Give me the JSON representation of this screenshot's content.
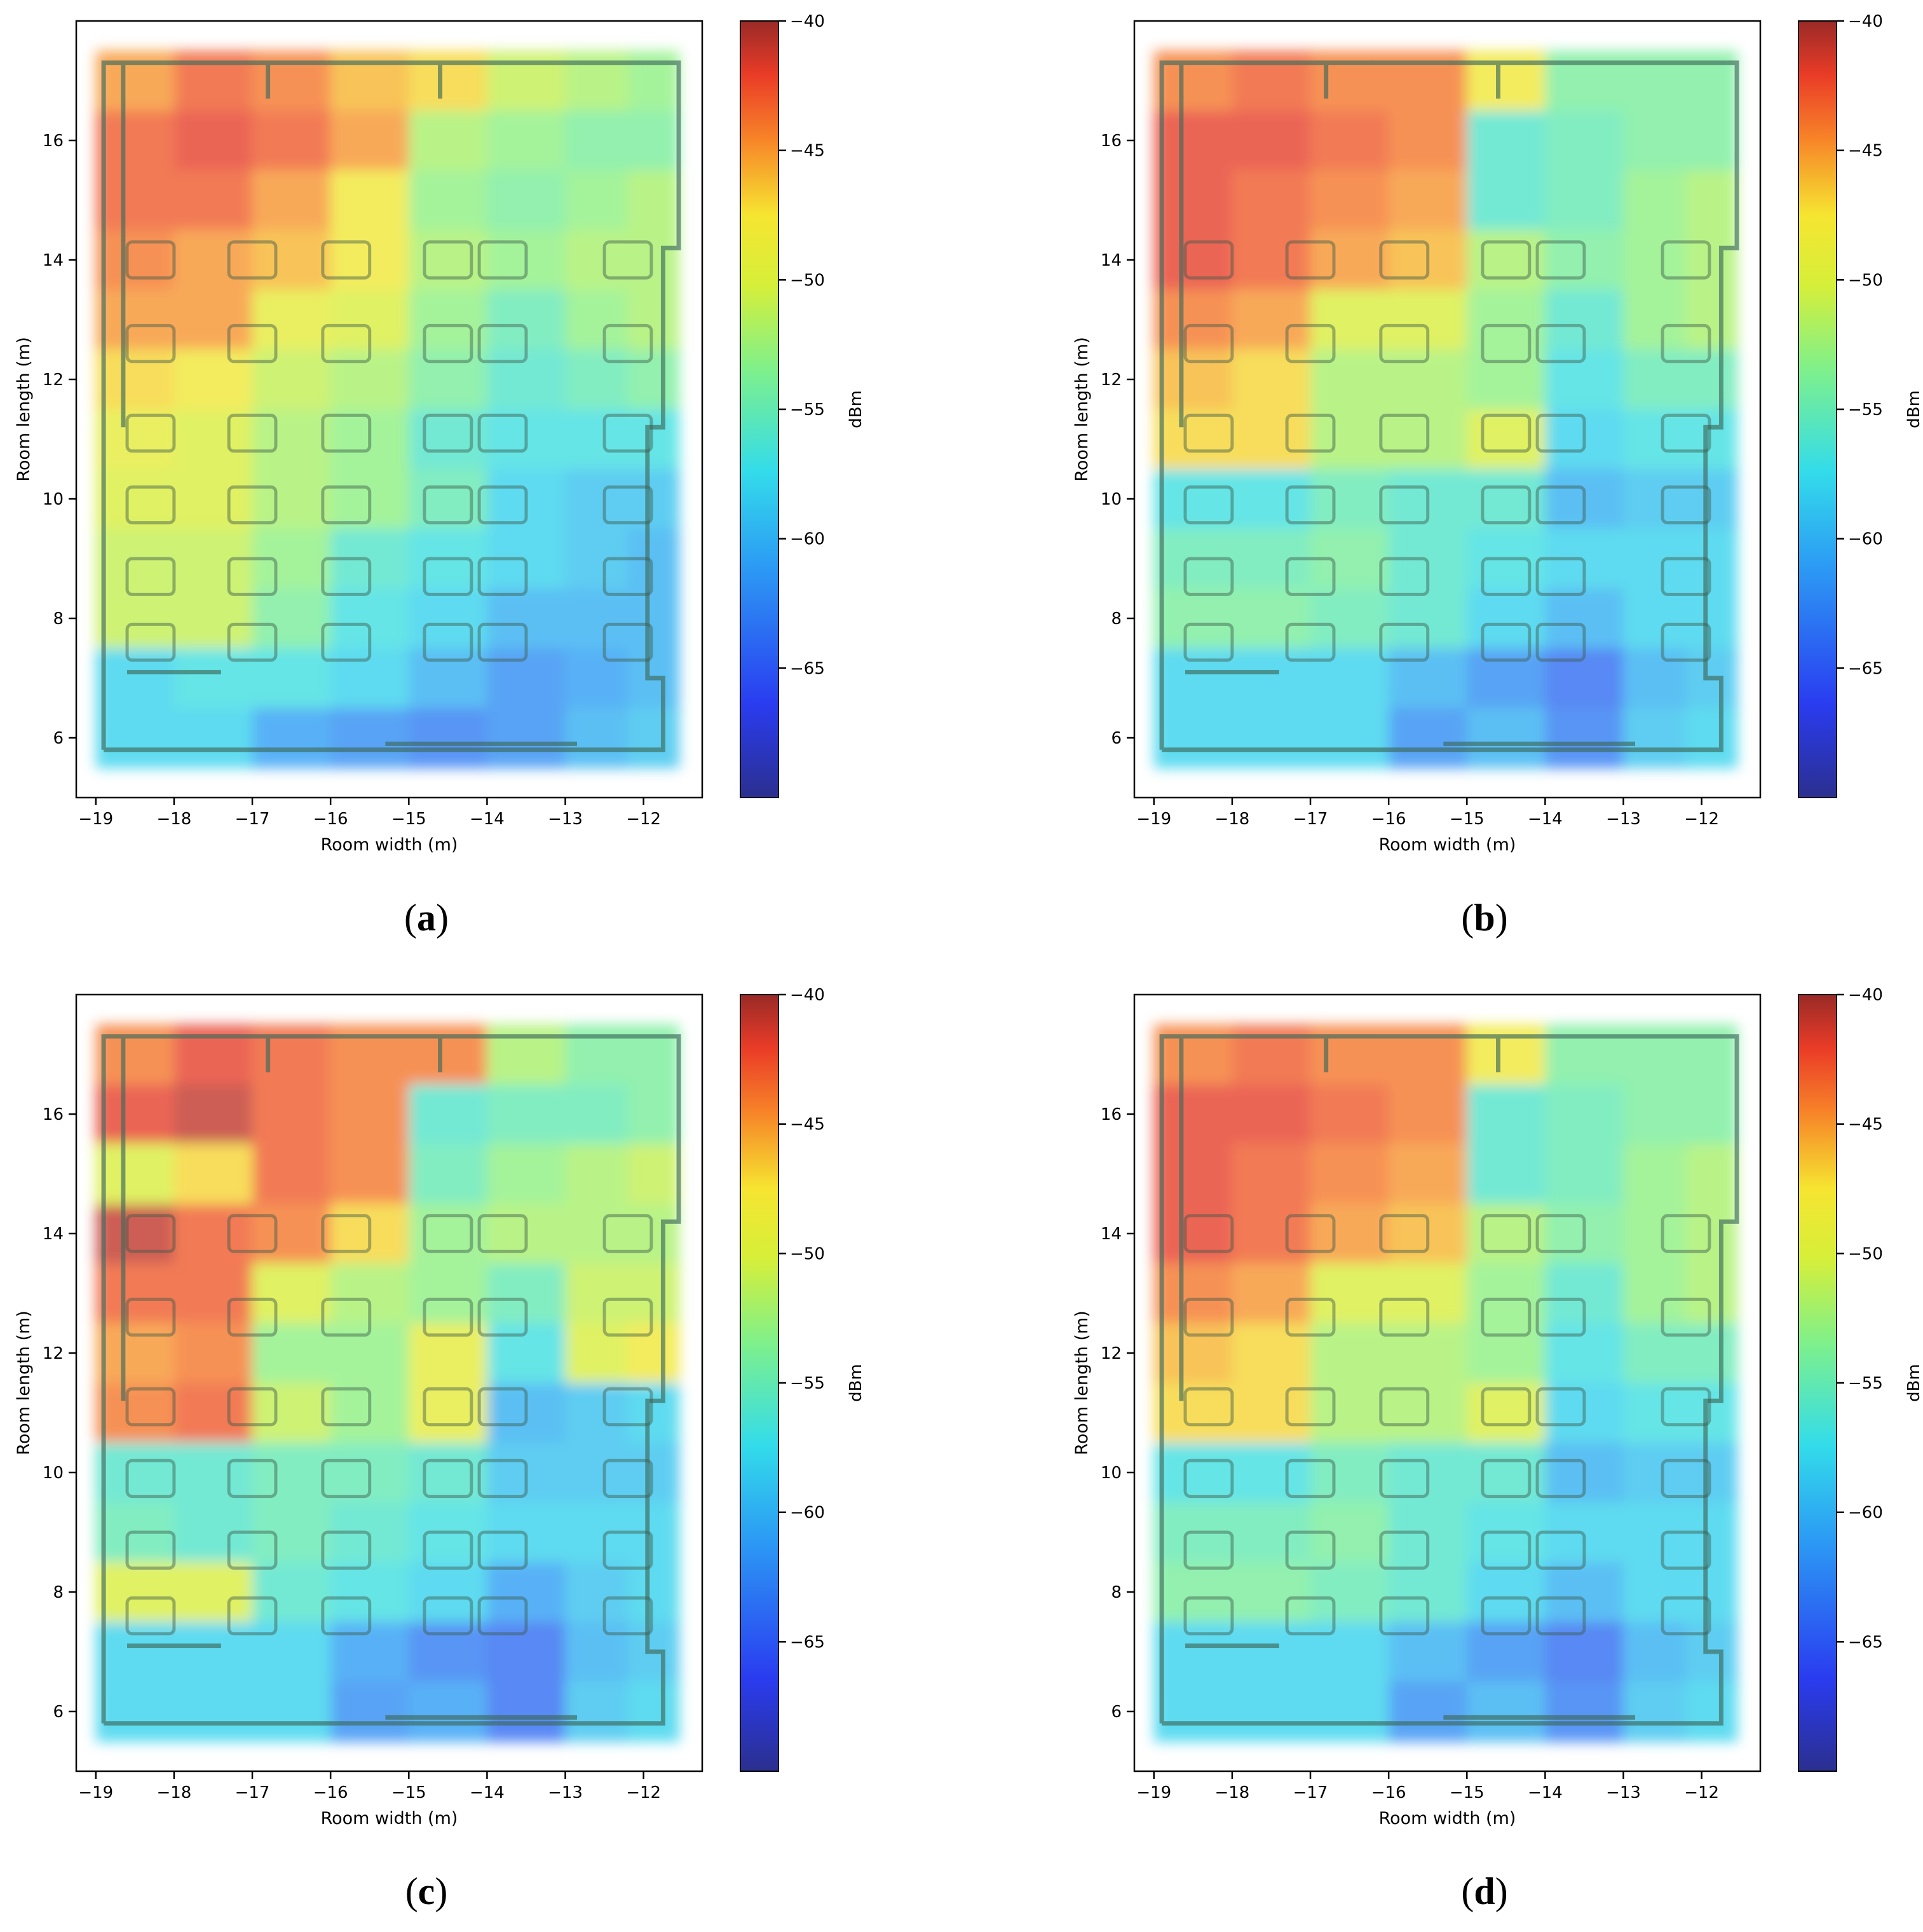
{
  "chart_data": [
    {
      "panel": "a",
      "type": "heatmap",
      "title": "",
      "xlabel": "Room width (m)",
      "ylabel": "Room length (m)",
      "xlim": [
        -19.25,
        -11.25
      ],
      "ylim": [
        5.0,
        18.0
      ],
      "xticks": [
        -19,
        -18,
        -17,
        -16,
        -15,
        -14,
        -13,
        -12
      ],
      "xtick_labels": [
        "−19",
        "−18",
        "−17",
        "−16",
        "−15",
        "−14",
        "−13",
        "−12"
      ],
      "yticks": [
        6,
        8,
        10,
        12,
        14,
        16
      ],
      "ytick_labels": [
        "6",
        "8",
        "10",
        "12",
        "14",
        "16"
      ],
      "colorbar": {
        "label": "dBm",
        "range": [
          -70,
          -40
        ],
        "ticks": [
          -40,
          -45,
          -50,
          -55,
          -60,
          -65
        ],
        "tick_labels": [
          "−40",
          "−45",
          "−50",
          "−55",
          "−60",
          "−65"
        ]
      },
      "x": [
        -18.5,
        -17.5,
        -16.5,
        -15.5,
        -14.5,
        -13.5,
        -12.5,
        -11.9
      ],
      "y": [
        17,
        16,
        15,
        14,
        13,
        12,
        11,
        10,
        9,
        8,
        7,
        6
      ],
      "z": [
        [
          -45,
          -43,
          -44,
          -46,
          -47,
          -51,
          -52,
          -53
        ],
        [
          -43,
          -42,
          -43,
          -45,
          -52,
          -53,
          -54,
          -54
        ],
        [
          -43,
          -43,
          -45,
          -48,
          -53,
          -54,
          -53,
          -52
        ],
        [
          -44,
          -45,
          -46,
          -48,
          -52,
          -53,
          -52,
          -52
        ],
        [
          -45,
          -45,
          -49,
          -50,
          -53,
          -55,
          -53,
          -52
        ],
        [
          -47,
          -48,
          -51,
          -52,
          -54,
          -56,
          -55,
          -54
        ],
        [
          -49,
          -50,
          -52,
          -53,
          -56,
          -57,
          -57,
          -57
        ],
        [
          -50,
          -50,
          -52,
          -53,
          -55,
          -58,
          -59,
          -59
        ],
        [
          -51,
          -51,
          -53,
          -56,
          -57,
          -58,
          -59,
          -60
        ],
        [
          -51,
          -51,
          -54,
          -57,
          -58,
          -60,
          -60,
          -60
        ],
        [
          -58,
          -57,
          -57,
          -58,
          -60,
          -62,
          -61,
          -60
        ],
        [
          -58,
          -58,
          -61,
          -62,
          -63,
          -62,
          -60,
          -59
        ]
      ],
      "caption": "a"
    },
    {
      "panel": "b",
      "type": "heatmap",
      "title": "",
      "xlabel": "Room width (m)",
      "ylabel": "Room length (m)",
      "xlim": [
        -19.25,
        -11.25
      ],
      "ylim": [
        5.0,
        18.0
      ],
      "xticks": [
        -19,
        -18,
        -17,
        -16,
        -15,
        -14,
        -13,
        -12
      ],
      "xtick_labels": [
        "−19",
        "−18",
        "−17",
        "−16",
        "−15",
        "−14",
        "−13",
        "−12"
      ],
      "yticks": [
        6,
        8,
        10,
        12,
        14,
        16
      ],
      "ytick_labels": [
        "6",
        "8",
        "10",
        "12",
        "14",
        "16"
      ],
      "colorbar": {
        "label": "dBm",
        "range": [
          -70,
          -40
        ],
        "ticks": [
          -40,
          -45,
          -50,
          -55,
          -60,
          -65
        ],
        "tick_labels": [
          "−40",
          "−45",
          "−50",
          "−55",
          "−60",
          "−65"
        ]
      },
      "x": [
        -18.5,
        -17.5,
        -16.5,
        -15.5,
        -14.5,
        -13.5,
        -12.5,
        -11.9
      ],
      "y": [
        17,
        16,
        15,
        14,
        13,
        12,
        11,
        10,
        9,
        8,
        7,
        6
      ],
      "z": [
        [
          -44,
          -43,
          -44,
          -44,
          -48,
          -54,
          -54,
          -54
        ],
        [
          -42,
          -42,
          -43,
          -44,
          -56,
          -55,
          -54,
          -54
        ],
        [
          -42,
          -43,
          -44,
          -45,
          -56,
          -55,
          -53,
          -52
        ],
        [
          -42,
          -43,
          -45,
          -46,
          -52,
          -54,
          -53,
          -52
        ],
        [
          -44,
          -45,
          -50,
          -50,
          -53,
          -56,
          -53,
          -52
        ],
        [
          -46,
          -47,
          -52,
          -52,
          -53,
          -57,
          -55,
          -55
        ],
        [
          -47,
          -47,
          -52,
          -52,
          -50,
          -58,
          -57,
          -57
        ],
        [
          -57,
          -57,
          -55,
          -56,
          -56,
          -60,
          -59,
          -59
        ],
        [
          -55,
          -55,
          -54,
          -56,
          -57,
          -58,
          -58,
          -58
        ],
        [
          -54,
          -54,
          -55,
          -56,
          -58,
          -60,
          -58,
          -58
        ],
        [
          -58,
          -58,
          -58,
          -60,
          -62,
          -64,
          -60,
          -59
        ],
        [
          -58,
          -58,
          -58,
          -62,
          -60,
          -63,
          -59,
          -58
        ]
      ],
      "caption": "b"
    },
    {
      "panel": "c",
      "type": "heatmap",
      "title": "",
      "xlabel": "Room width (m)",
      "ylabel": "Room length (m)",
      "xlim": [
        -19.25,
        -11.25
      ],
      "ylim": [
        5.0,
        18.0
      ],
      "xticks": [
        -19,
        -18,
        -17,
        -16,
        -15,
        -14,
        -13,
        -12
      ],
      "xtick_labels": [
        "−19",
        "−18",
        "−17",
        "−16",
        "−15",
        "−14",
        "−13",
        "−12"
      ],
      "yticks": [
        6,
        8,
        10,
        12,
        14,
        16
      ],
      "ytick_labels": [
        "6",
        "8",
        "10",
        "12",
        "14",
        "16"
      ],
      "colorbar": {
        "label": "dBm",
        "range": [
          -70,
          -40
        ],
        "ticks": [
          -40,
          -45,
          -50,
          -55,
          -60,
          -65
        ],
        "tick_labels": [
          "−40",
          "−45",
          "−50",
          "−55",
          "−60",
          "−65"
        ]
      },
      "x": [
        -18.5,
        -17.5,
        -16.5,
        -15.5,
        -14.5,
        -13.5,
        -12.5,
        -11.9
      ],
      "y": [
        17,
        16,
        15,
        14,
        13,
        12,
        11,
        10,
        9,
        8,
        7,
        6
      ],
      "z": [
        [
          -44,
          -42,
          -43,
          -44,
          -44,
          -52,
          -54,
          -54
        ],
        [
          -42,
          -41,
          -43,
          -44,
          -56,
          -55,
          -55,
          -54
        ],
        [
          -50,
          -47,
          -43,
          -44,
          -55,
          -53,
          -52,
          -51
        ],
        [
          -41,
          -43,
          -44,
          -47,
          -53,
          -52,
          -52,
          -52
        ],
        [
          -43,
          -43,
          -50,
          -52,
          -53,
          -55,
          -51,
          -51
        ],
        [
          -45,
          -44,
          -53,
          -53,
          -49,
          -57,
          -50,
          -48
        ],
        [
          -44,
          -43,
          -51,
          -53,
          -49,
          -60,
          -59,
          -58
        ],
        [
          -56,
          -56,
          -55,
          -55,
          -56,
          -59,
          -59,
          -59
        ],
        [
          -55,
          -56,
          -55,
          -56,
          -57,
          -58,
          -58,
          -58
        ],
        [
          -50,
          -50,
          -56,
          -57,
          -58,
          -61,
          -59,
          -58
        ],
        [
          -58,
          -58,
          -58,
          -61,
          -63,
          -64,
          -60,
          -59
        ],
        [
          -58,
          -58,
          -58,
          -62,
          -61,
          -64,
          -59,
          -58
        ]
      ],
      "caption": "c"
    },
    {
      "panel": "d",
      "type": "heatmap",
      "title": "",
      "xlabel": "Room width (m)",
      "ylabel": "Room length (m)",
      "xlim": [
        -19.25,
        -11.25
      ],
      "ylim": [
        5.0,
        18.0
      ],
      "xticks": [
        -19,
        -18,
        -17,
        -16,
        -15,
        -14,
        -13,
        -12
      ],
      "xtick_labels": [
        "−19",
        "−18",
        "−17",
        "−16",
        "−15",
        "−14",
        "−13",
        "−12"
      ],
      "yticks": [
        6,
        8,
        10,
        12,
        14,
        16
      ],
      "ytick_labels": [
        "6",
        "8",
        "10",
        "12",
        "14",
        "16"
      ],
      "colorbar": {
        "label": "dBm",
        "range": [
          -70,
          -40
        ],
        "ticks": [
          -40,
          -45,
          -50,
          -55,
          -60,
          -65
        ],
        "tick_labels": [
          "−40",
          "−45",
          "−50",
          "−55",
          "−60",
          "−65"
        ]
      },
      "x": [
        -18.5,
        -17.5,
        -16.5,
        -15.5,
        -14.5,
        -13.5,
        -12.5,
        -11.9
      ],
      "y": [
        17,
        16,
        15,
        14,
        13,
        12,
        11,
        10,
        9,
        8,
        7,
        6
      ],
      "z": [
        [
          -44,
          -43,
          -44,
          -44,
          -48,
          -54,
          -54,
          -54
        ],
        [
          -42,
          -42,
          -43,
          -44,
          -56,
          -55,
          -54,
          -54
        ],
        [
          -42,
          -43,
          -44,
          -45,
          -56,
          -55,
          -53,
          -52
        ],
        [
          -42,
          -43,
          -45,
          -46,
          -52,
          -54,
          -53,
          -52
        ],
        [
          -44,
          -45,
          -50,
          -50,
          -53,
          -56,
          -53,
          -52
        ],
        [
          -46,
          -47,
          -52,
          -52,
          -53,
          -57,
          -55,
          -55
        ],
        [
          -47,
          -47,
          -52,
          -52,
          -50,
          -58,
          -57,
          -57
        ],
        [
          -57,
          -57,
          -55,
          -56,
          -56,
          -60,
          -59,
          -59
        ],
        [
          -55,
          -55,
          -54,
          -56,
          -57,
          -58,
          -58,
          -58
        ],
        [
          -54,
          -54,
          -55,
          -56,
          -58,
          -60,
          -58,
          -58
        ],
        [
          -58,
          -58,
          -58,
          -60,
          -62,
          -64,
          -60,
          -59
        ],
        [
          -58,
          -58,
          -58,
          -62,
          -60,
          -63,
          -59,
          -58
        ]
      ],
      "caption": "d"
    }
  ]
}
